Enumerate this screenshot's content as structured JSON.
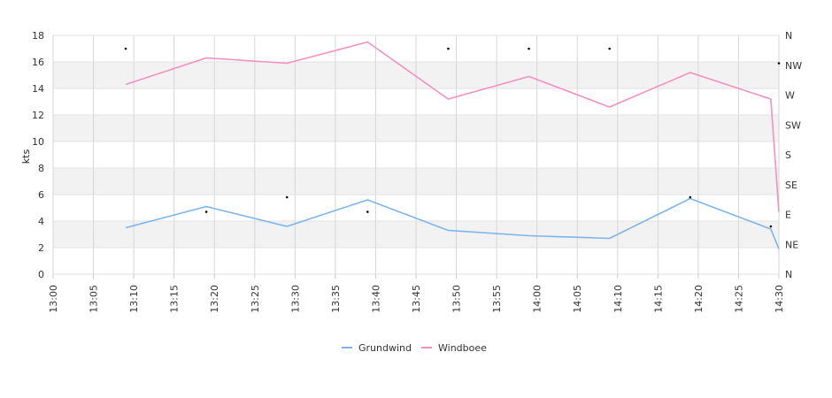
{
  "chart_data": {
    "type": "line",
    "ylabel": "kts",
    "ylim": [
      0,
      18
    ],
    "y_ticks": [
      "0",
      "2",
      "4",
      "6",
      "8",
      "10",
      "12",
      "14",
      "16",
      "18"
    ],
    "x_ticks": [
      "13:00",
      "13:05",
      "13:10",
      "13:15",
      "13:20",
      "13:25",
      "13:30",
      "13:35",
      "13:40",
      "13:45",
      "13:50",
      "13:55",
      "14:00",
      "14:05",
      "14:10",
      "14:15",
      "14:20",
      "14:25",
      "14:30"
    ],
    "xlim": [
      "13:00",
      "14:30"
    ],
    "direction_axis": {
      "labels": [
        "NE",
        "E",
        "SE",
        "S",
        "SW",
        "W",
        "NW",
        "N"
      ],
      "bottom_label": "N",
      "top_label": "N"
    },
    "grid": true,
    "legend_position": "bottom-center",
    "series": [
      {
        "name": "Grundwind",
        "color": "#7cb5ec",
        "points": [
          [
            "13:09",
            3.5
          ],
          [
            "13:19",
            5.1
          ],
          [
            "13:29",
            3.6
          ],
          [
            "13:39",
            5.6
          ],
          [
            "13:49",
            3.3
          ],
          [
            "13:59",
            2.9
          ],
          [
            "14:09",
            2.7
          ],
          [
            "14:19",
            5.7
          ],
          [
            "14:29",
            3.4
          ],
          [
            "14:30",
            1.9
          ]
        ]
      },
      {
        "name": "Windboee",
        "color": "#f48fbf",
        "points": [
          [
            "13:09",
            14.3
          ],
          [
            "13:19",
            16.3
          ],
          [
            "13:29",
            15.9
          ],
          [
            "13:39",
            17.5
          ],
          [
            "13:49",
            13.2
          ],
          [
            "13:59",
            14.9
          ],
          [
            "14:09",
            12.6
          ],
          [
            "14:19",
            15.2
          ],
          [
            "14:29",
            13.2
          ],
          [
            "14:30",
            4.7
          ]
        ]
      }
    ],
    "direction_markers": {
      "color": "#000000",
      "points": [
        [
          "13:09",
          17.0
        ],
        [
          "13:19",
          4.7
        ],
        [
          "13:29",
          5.8
        ],
        [
          "13:39",
          4.7
        ],
        [
          "13:49",
          17.0
        ],
        [
          "13:59",
          17.0
        ],
        [
          "14:09",
          17.0
        ],
        [
          "14:19",
          5.8
        ],
        [
          "14:29",
          3.6
        ],
        [
          "14:30",
          15.9
        ]
      ]
    }
  }
}
